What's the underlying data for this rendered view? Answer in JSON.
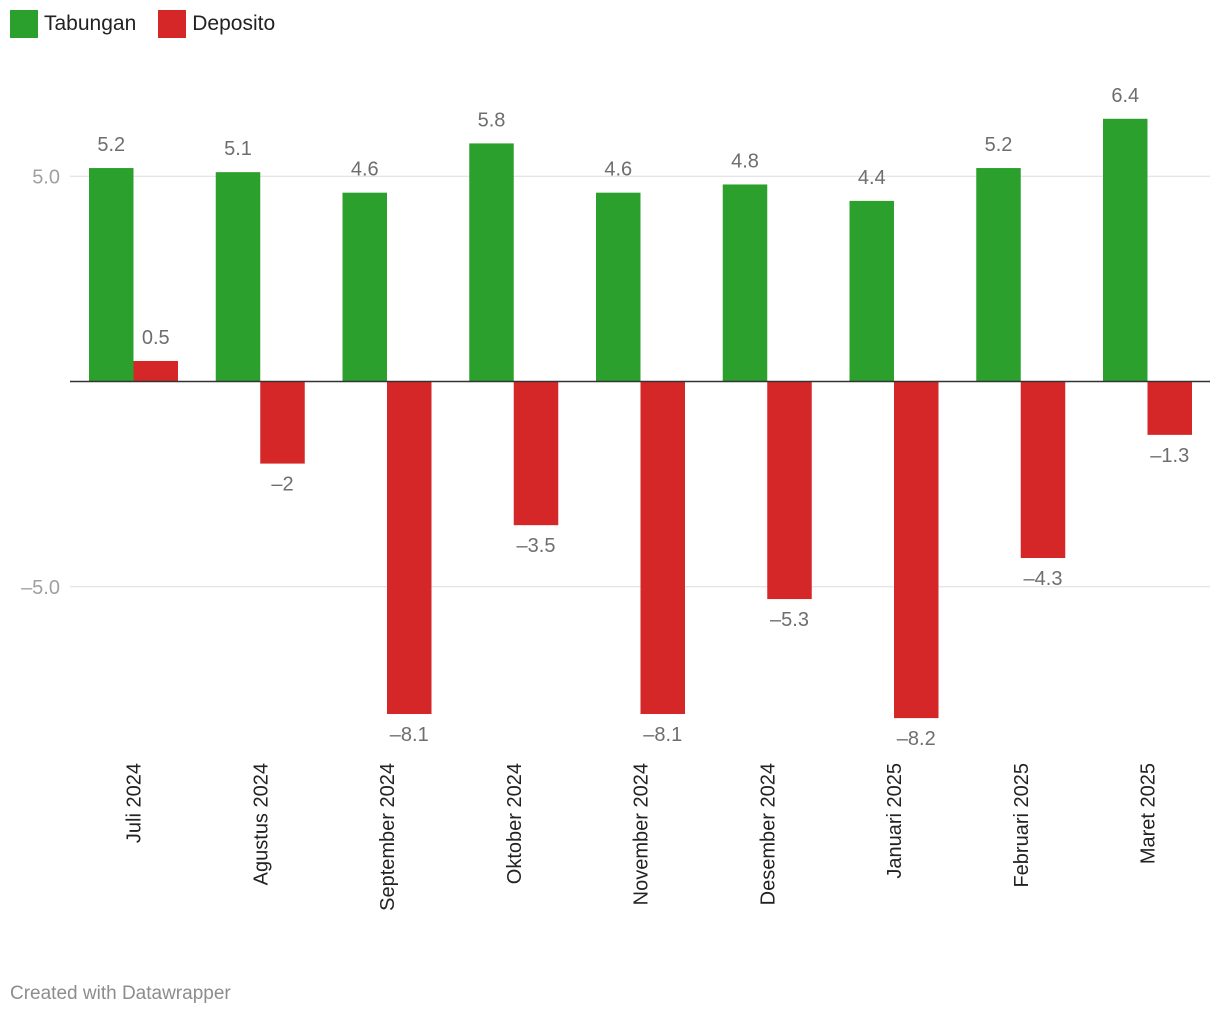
{
  "chart_data": {
    "type": "bar",
    "categories": [
      "Juli 2024",
      "Agustus 2024",
      "September 2024",
      "Oktober 2024",
      "November 2024",
      "Desember 2024",
      "Januari 2025",
      "Februari 2025",
      "Maret 2025"
    ],
    "series": [
      {
        "name": "Tabungan",
        "color": "#2ca02c",
        "values": [
          5.2,
          5.1,
          4.6,
          5.8,
          4.6,
          4.8,
          4.4,
          5.2,
          6.4
        ]
      },
      {
        "name": "Deposito",
        "color": "#d62728",
        "values": [
          0.5,
          -2,
          -8.1,
          -3.5,
          -8.1,
          -5.3,
          -8.2,
          -4.3,
          -1.3
        ]
      }
    ],
    "value_labels": {
      "Tabungan": [
        "5.2",
        "5.1",
        "4.6",
        "5.8",
        "4.6",
        "4.8",
        "4.4",
        "5.2",
        "6.4"
      ],
      "Deposito": [
        "0.5",
        "–2",
        "–8.1",
        "–3.5",
        "–8.1",
        "–5.3",
        "–8.2",
        "–4.3",
        "–1.3"
      ]
    },
    "y_ticks": [
      5,
      -5
    ],
    "y_tick_labels": [
      "5.0",
      "–5.0"
    ],
    "ylim": [
      -9,
      9
    ],
    "grid": true,
    "legend_position": "top-left"
  },
  "footer": {
    "credit": "Created with Datawrapper"
  }
}
